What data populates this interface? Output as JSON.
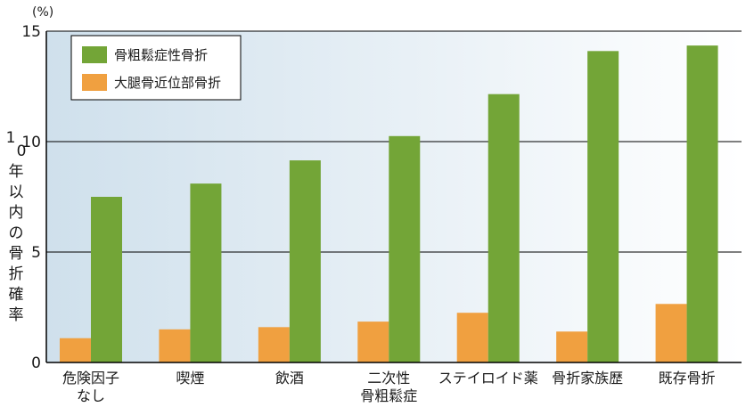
{
  "chart_data": {
    "type": "bar",
    "unit_label": "(%)",
    "ylabel": "10年以内の骨折確率",
    "ylim": [
      0,
      15
    ],
    "yticks": [
      0,
      5,
      10,
      15
    ],
    "grid": true,
    "legend_position": "top-left",
    "categories": [
      [
        "危険因子",
        "なし"
      ],
      [
        "喫煙"
      ],
      [
        "飲酒"
      ],
      [
        "二次性",
        "骨粗鬆症"
      ],
      [
        "ステイロイド薬"
      ],
      [
        "骨折家族歴"
      ],
      [
        "既存骨折"
      ]
    ],
    "series": [
      {
        "name": "大腿骨近位部骨折",
        "color": "#f0a040",
        "values": [
          1.1,
          1.5,
          1.6,
          1.85,
          2.25,
          1.4,
          2.65
        ]
      },
      {
        "name": "骨粗鬆症性骨折",
        "color": "#73a537",
        "values": [
          7.5,
          8.1,
          9.15,
          10.25,
          12.15,
          14.1,
          14.35
        ]
      }
    ],
    "legend_order": [
      1,
      0
    ],
    "background_gradient": [
      "#cfe0ec",
      "#ffffff"
    ]
  }
}
